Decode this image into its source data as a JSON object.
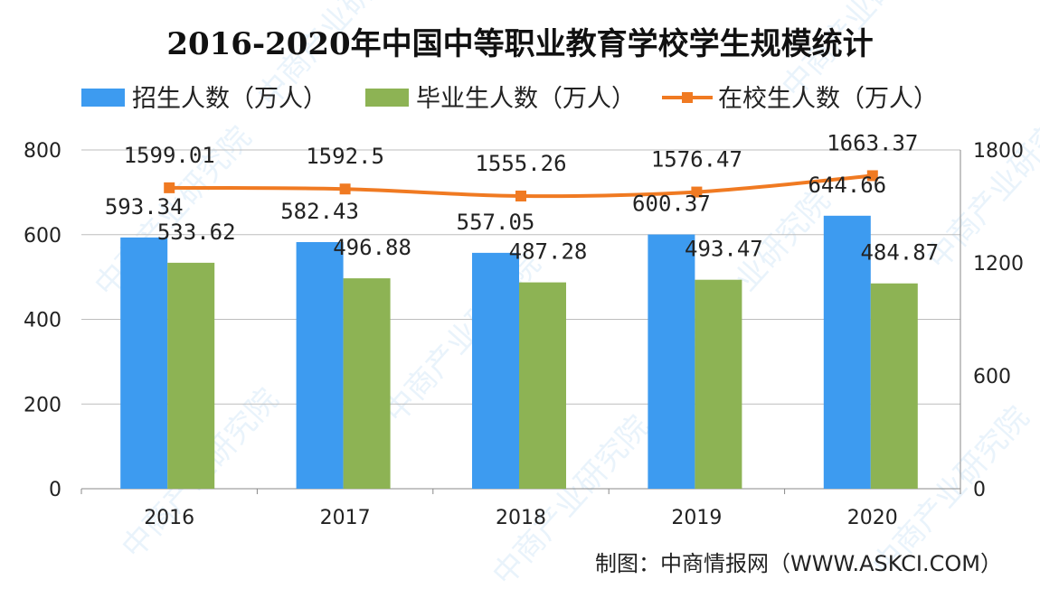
{
  "chart_data": {
    "type": "bar",
    "title": "2016-2020年中国中等职业教育学校学生规模统计",
    "categories": [
      "2016",
      "2017",
      "2018",
      "2019",
      "2020"
    ],
    "series": [
      {
        "name": "招生人数（万人）",
        "kind": "bar",
        "axis": "left",
        "values": [
          593.34,
          582.43,
          557.05,
          600.37,
          644.66
        ],
        "labels": [
          "593.34",
          "582.43",
          "557.05",
          "600.37",
          "644.66"
        ],
        "color": "#3d9bf0"
      },
      {
        "name": "毕业生人数（万人）",
        "kind": "bar",
        "axis": "left",
        "values": [
          533.62,
          496.88,
          487.28,
          493.47,
          484.87
        ],
        "labels": [
          "533.62",
          "496.88",
          "487.28",
          "493.47",
          "484.87"
        ],
        "color": "#8db354"
      },
      {
        "name": "在校生人数（万人）",
        "kind": "line",
        "axis": "right",
        "values": [
          1599.01,
          1592.5,
          1555.26,
          1576.47,
          1663.37
        ],
        "labels": [
          "1599.01",
          "1592.5",
          "1555.26",
          "1576.47",
          "1663.37"
        ],
        "color": "#f07a22"
      }
    ],
    "y_left": {
      "range": [
        0,
        800
      ],
      "ticks": [
        "0",
        "200",
        "400",
        "600",
        "800"
      ]
    },
    "y_right": {
      "range": [
        0,
        1800
      ],
      "ticks": [
        "0",
        "600",
        "1200",
        "1800"
      ]
    },
    "grid": true,
    "legend_position": "top"
  },
  "source": "制图：中商情报网（WWW.ASKCI.COM）",
  "watermark": "中商产业研究院"
}
